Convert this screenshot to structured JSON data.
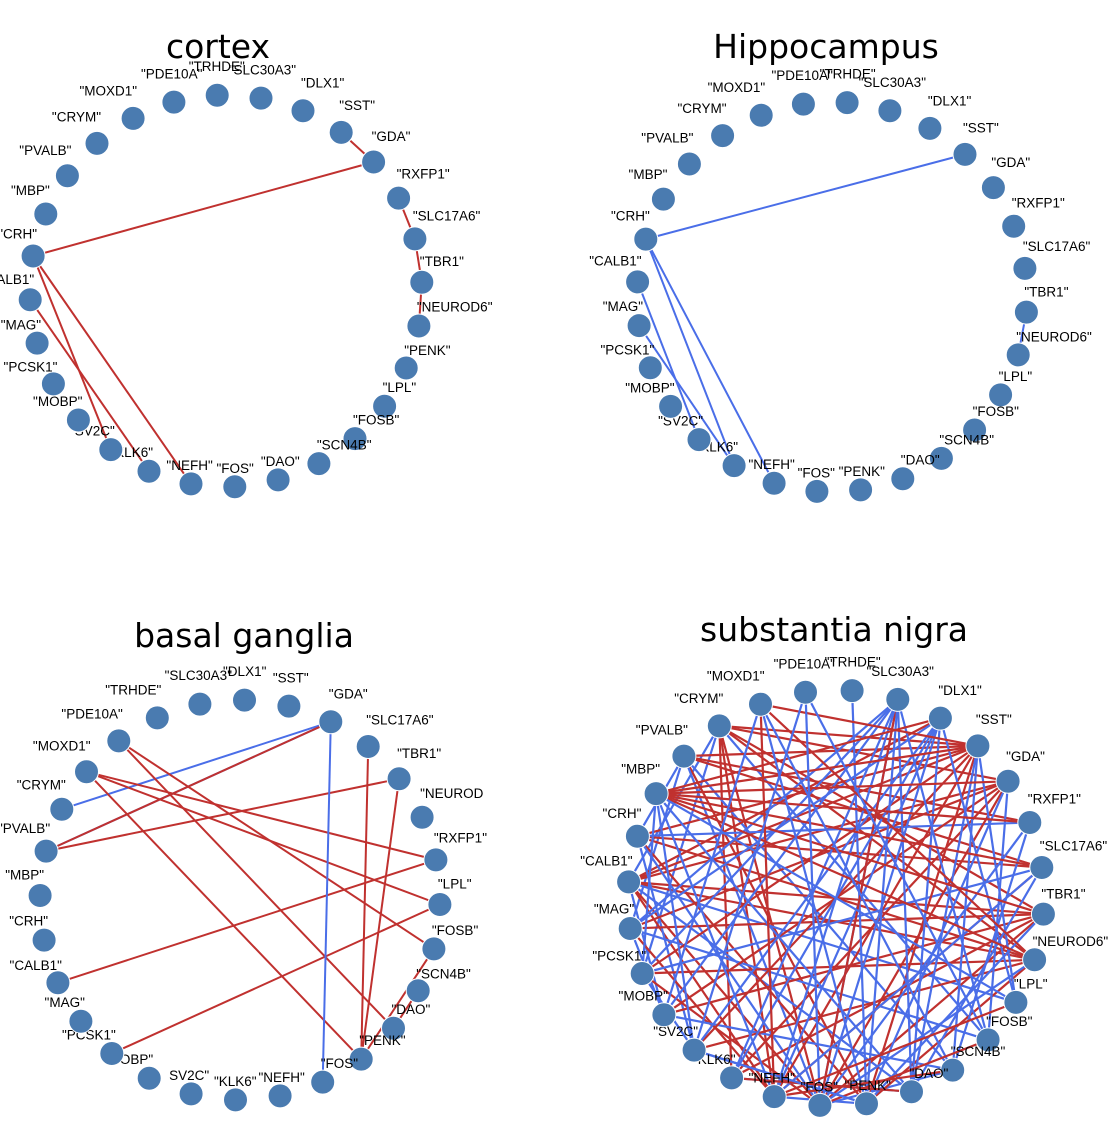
{
  "colors": {
    "positive_edge": "#c0312f",
    "negative_edge": "#4a6ee8",
    "node": "#4a7bb0"
  },
  "figure": {
    "panels": [
      {
        "title": "cortex",
        "nodes": [
          "\"SST\"",
          "\"GDA\"",
          "\"RXFP1\"",
          "\"SLC17A6\"",
          "\"TBR1\"",
          "\"NEUROD6\"",
          "\"PENK\"",
          "\"LPL\"",
          "\"FOSB\"",
          "\"SCN4B\"",
          "\"DAO\"",
          "\"FOS\"",
          "\"NEFH\"",
          "\"KLK6\"",
          "\"SV2C\"",
          "\"MOBP\"",
          "\"PCSK1\"",
          "\"MAG\"",
          "\"CALB1\"",
          "\"CRH\"",
          "\"MBP\"",
          "\"PVALB\"",
          "\"CRYM\"",
          "\"MOXD1\"",
          "\"PDE10A\"",
          "\"TRHDE\"",
          "\"SLC30A3\"",
          "\"DLX1\""
        ],
        "edges": [
          {
            "a": 0,
            "b": 1,
            "s": "pos"
          },
          {
            "a": 1,
            "b": 19,
            "s": "pos"
          },
          {
            "a": 2,
            "b": 3,
            "s": "pos"
          },
          {
            "a": 3,
            "b": 4,
            "s": "pos"
          },
          {
            "a": 4,
            "b": 5,
            "s": "pos"
          },
          {
            "a": 19,
            "b": 12,
            "s": "pos"
          },
          {
            "a": 19,
            "b": 14,
            "s": "pos"
          },
          {
            "a": 18,
            "b": 13,
            "s": "pos"
          }
        ]
      },
      {
        "title": "Hippocampus",
        "nodes": [
          "\"SST\"",
          "\"GDA\"",
          "\"RXFP1\"",
          "\"SLC17A6\"",
          "\"TBR1\"",
          "\"NEUROD6\"",
          "\"LPL\"",
          "\"FOSB\"",
          "\"SCN4B\"",
          "\"DAO\"",
          "\"PENK\"",
          "\"FOS\"",
          "\"NEFH\"",
          "\"KLK6\"",
          "\"SV2C\"",
          "\"MOBP\"",
          "\"PCSK1\"",
          "\"MAG\"",
          "\"CALB1\"",
          "\"CRH\"",
          "\"MBP\"",
          "\"PVALB\"",
          "\"CRYM\"",
          "\"MOXD1\"",
          "\"PDE10A\"",
          "\"TRHDE\"",
          "\"SLC30A3\"",
          "\"DLX1\""
        ],
        "edges": [
          {
            "a": 0,
            "b": 19,
            "s": "neg"
          },
          {
            "a": 19,
            "b": 12,
            "s": "neg"
          },
          {
            "a": 19,
            "b": 13,
            "s": "neg"
          },
          {
            "a": 18,
            "b": 14,
            "s": "neg"
          },
          {
            "a": 17,
            "b": 13,
            "s": "neg"
          },
          {
            "a": 4,
            "b": 5,
            "s": "neg"
          }
        ]
      },
      {
        "title": "basal ganglia",
        "nodes": [
          "\"GDA\"",
          "\"SLC17A6\"",
          "\"TBR1\"",
          "\"NEUROD",
          "\"RXFP1\"",
          "\"LPL\"",
          "\"FOSB\"",
          "\"SCN4B\"",
          "\"DAO\"",
          "\"PENK\"",
          "\"FOS\"",
          "\"NEFH\"",
          "\"KLK6\"",
          "SV2C\"",
          "\"MOBP\"",
          "\"PCSK1\"",
          "\"MAG\"",
          "\"CALB1\"",
          "\"CRH\"",
          "\"MBP\"",
          "\"PVALB\"",
          "\"CRYM\"",
          "\"MOXD1\"",
          "\"PDE10A\"",
          "\"TRHDE\"",
          "\"SLC30A3\"",
          "\"DLX1\"",
          "\"SST\""
        ],
        "edges": [
          {
            "a": 21,
            "b": 0,
            "s": "neg"
          },
          {
            "a": 20,
            "b": 0,
            "s": "neg"
          },
          {
            "a": 20,
            "b": 0,
            "s": "pos"
          },
          {
            "a": 20,
            "b": 2,
            "s": "pos"
          },
          {
            "a": 17,
            "b": 4,
            "s": "pos"
          },
          {
            "a": 15,
            "b": 5,
            "s": "pos"
          },
          {
            "a": 22,
            "b": 9,
            "s": "pos"
          },
          {
            "a": 22,
            "b": 4,
            "s": "pos"
          },
          {
            "a": 22,
            "b": 5,
            "s": "pos"
          },
          {
            "a": 23,
            "b": 6,
            "s": "pos"
          },
          {
            "a": 23,
            "b": 8,
            "s": "pos"
          },
          {
            "a": 9,
            "b": 2,
            "s": "pos"
          },
          {
            "a": 9,
            "b": 1,
            "s": "pos"
          },
          {
            "a": 10,
            "b": 0,
            "s": "neg"
          },
          {
            "a": 9,
            "b": 6,
            "s": "pos"
          },
          {
            "a": 8,
            "b": 7,
            "s": "pos"
          }
        ]
      },
      {
        "title": "substantia nigra",
        "nodes": [
          "\"SST\"",
          "\"GDA\"",
          "\"RXFP1\"",
          "\"SLC17A6\"",
          "\"TBR1\"",
          "\"NEUROD6\"",
          "\"LPL\"",
          "\"FOSB\"",
          "\"SCN4B\"",
          "\"DAO\"",
          "\"PENK\"",
          "\"FOS\"",
          "\"NEFH\"",
          "\"KLK6\"",
          "\"SV2C\"",
          "\"MOBP\"",
          "\"PCSK1\"",
          "\"MAG\"",
          "\"CALB1\"",
          "\"CRH\"",
          "\"MBP\"",
          "\"PVALB\"",
          "\"CRYM\"",
          "\"MOXD1\"",
          "\"PDE10A\"",
          "\"TRHDE\"",
          "\"SLC30A3\"",
          "\"DLX1\""
        ],
        "edges": [
          {
            "a": 22,
            "b": 0,
            "s": "pos"
          },
          {
            "a": 22,
            "b": 1,
            "s": "pos"
          },
          {
            "a": 22,
            "b": 4,
            "s": "pos"
          },
          {
            "a": 22,
            "b": 5,
            "s": "pos"
          },
          {
            "a": 22,
            "b": 11,
            "s": "pos"
          },
          {
            "a": 22,
            "b": 12,
            "s": "pos"
          },
          {
            "a": 22,
            "b": 13,
            "s": "pos"
          },
          {
            "a": 22,
            "b": 16,
            "s": "neg"
          },
          {
            "a": 22,
            "b": 18,
            "s": "neg"
          },
          {
            "a": 22,
            "b": 7,
            "s": "neg"
          },
          {
            "a": 21,
            "b": 0,
            "s": "pos"
          },
          {
            "a": 21,
            "b": 2,
            "s": "pos"
          },
          {
            "a": 21,
            "b": 3,
            "s": "pos"
          },
          {
            "a": 21,
            "b": 10,
            "s": "pos"
          },
          {
            "a": 21,
            "b": 11,
            "s": "neg"
          },
          {
            "a": 21,
            "b": 17,
            "s": "neg"
          },
          {
            "a": 21,
            "b": 19,
            "s": "neg"
          },
          {
            "a": 21,
            "b": 8,
            "s": "neg"
          },
          {
            "a": 18,
            "b": 0,
            "s": "pos"
          },
          {
            "a": 18,
            "b": 1,
            "s": "pos"
          },
          {
            "a": 18,
            "b": 4,
            "s": "pos"
          },
          {
            "a": 18,
            "b": 5,
            "s": "pos"
          },
          {
            "a": 18,
            "b": 12,
            "s": "pos"
          },
          {
            "a": 18,
            "b": 11,
            "s": "pos"
          },
          {
            "a": 18,
            "b": 27,
            "s": "pos"
          },
          {
            "a": 18,
            "b": 6,
            "s": "neg"
          },
          {
            "a": 18,
            "b": 9,
            "s": "neg"
          },
          {
            "a": 18,
            "b": 15,
            "s": "neg"
          },
          {
            "a": 19,
            "b": 0,
            "s": "pos"
          },
          {
            "a": 19,
            "b": 3,
            "s": "pos"
          },
          {
            "a": 19,
            "b": 5,
            "s": "pos"
          },
          {
            "a": 19,
            "b": 10,
            "s": "pos"
          },
          {
            "a": 19,
            "b": 11,
            "s": "neg"
          },
          {
            "a": 19,
            "b": 2,
            "s": "neg"
          },
          {
            "a": 19,
            "b": 14,
            "s": "neg"
          },
          {
            "a": 17,
            "b": 1,
            "s": "pos"
          },
          {
            "a": 17,
            "b": 4,
            "s": "pos"
          },
          {
            "a": 17,
            "b": 12,
            "s": "pos"
          },
          {
            "a": 17,
            "b": 27,
            "s": "neg"
          },
          {
            "a": 17,
            "b": 7,
            "s": "neg"
          },
          {
            "a": 17,
            "b": 15,
            "s": "neg"
          },
          {
            "a": 16,
            "b": 0,
            "s": "pos"
          },
          {
            "a": 16,
            "b": 5,
            "s": "pos"
          },
          {
            "a": 16,
            "b": 11,
            "s": "pos"
          },
          {
            "a": 16,
            "b": 3,
            "s": "neg"
          },
          {
            "a": 16,
            "b": 26,
            "s": "neg"
          },
          {
            "a": 16,
            "b": 14,
            "s": "neg"
          },
          {
            "a": 15,
            "b": 1,
            "s": "pos"
          },
          {
            "a": 15,
            "b": 4,
            "s": "pos"
          },
          {
            "a": 15,
            "b": 26,
            "s": "neg"
          },
          {
            "a": 15,
            "b": 8,
            "s": "neg"
          },
          {
            "a": 14,
            "b": 0,
            "s": "pos"
          },
          {
            "a": 14,
            "b": 5,
            "s": "pos"
          },
          {
            "a": 14,
            "b": 27,
            "s": "neg"
          },
          {
            "a": 14,
            "b": 10,
            "s": "neg"
          },
          {
            "a": 13,
            "b": 1,
            "s": "pos"
          },
          {
            "a": 13,
            "b": 4,
            "s": "pos"
          },
          {
            "a": 13,
            "b": 26,
            "s": "neg"
          },
          {
            "a": 13,
            "b": 9,
            "s": "neg"
          },
          {
            "a": 12,
            "b": 0,
            "s": "pos"
          },
          {
            "a": 12,
            "b": 3,
            "s": "pos"
          },
          {
            "a": 12,
            "b": 27,
            "s": "neg"
          },
          {
            "a": 12,
            "b": 10,
            "s": "neg"
          },
          {
            "a": 11,
            "b": 1,
            "s": "pos"
          },
          {
            "a": 11,
            "b": 4,
            "s": "pos"
          },
          {
            "a": 11,
            "b": 26,
            "s": "neg"
          },
          {
            "a": 11,
            "b": 8,
            "s": "neg"
          },
          {
            "a": 10,
            "b": 0,
            "s": "pos"
          },
          {
            "a": 10,
            "b": 5,
            "s": "pos"
          },
          {
            "a": 10,
            "b": 25,
            "s": "neg"
          },
          {
            "a": 26,
            "b": 11,
            "s": "pos"
          },
          {
            "a": 26,
            "b": 9,
            "s": "neg"
          },
          {
            "a": 26,
            "b": 10,
            "s": "neg"
          },
          {
            "a": 26,
            "b": 12,
            "s": "neg"
          },
          {
            "a": 26,
            "b": 7,
            "s": "neg"
          },
          {
            "a": 26,
            "b": 17,
            "s": "neg"
          },
          {
            "a": 27,
            "b": 9,
            "s": "neg"
          },
          {
            "a": 27,
            "b": 11,
            "s": "neg"
          },
          {
            "a": 27,
            "b": 13,
            "s": "neg"
          },
          {
            "a": 27,
            "b": 6,
            "s": "neg"
          },
          {
            "a": 27,
            "b": 20,
            "s": "pos"
          },
          {
            "a": 0,
            "b": 6,
            "s": "neg"
          },
          {
            "a": 0,
            "b": 8,
            "s": "neg"
          },
          {
            "a": 0,
            "b": 9,
            "s": "neg"
          },
          {
            "a": 0,
            "b": 20,
            "s": "pos"
          },
          {
            "a": 0,
            "b": 23,
            "s": "pos"
          },
          {
            "a": 1,
            "b": 7,
            "s": "neg"
          },
          {
            "a": 1,
            "b": 10,
            "s": "neg"
          },
          {
            "a": 1,
            "b": 20,
            "s": "pos"
          },
          {
            "a": 2,
            "b": 8,
            "s": "neg"
          },
          {
            "a": 2,
            "b": 11,
            "s": "neg"
          },
          {
            "a": 2,
            "b": 20,
            "s": "pos"
          },
          {
            "a": 3,
            "b": 9,
            "s": "neg"
          },
          {
            "a": 3,
            "b": 12,
            "s": "neg"
          },
          {
            "a": 3,
            "b": 20,
            "s": "pos"
          },
          {
            "a": 4,
            "b": 10,
            "s": "neg"
          },
          {
            "a": 4,
            "b": 20,
            "s": "pos"
          },
          {
            "a": 5,
            "b": 11,
            "s": "neg"
          },
          {
            "a": 5,
            "b": 20,
            "s": "pos"
          },
          {
            "a": 5,
            "b": 23,
            "s": "pos"
          },
          {
            "a": 20,
            "b": 6,
            "s": "neg"
          },
          {
            "a": 20,
            "b": 9,
            "s": "neg"
          },
          {
            "a": 20,
            "b": 12,
            "s": "neg"
          },
          {
            "a": 20,
            "b": 14,
            "s": "neg"
          },
          {
            "a": 20,
            "b": 16,
            "s": "neg"
          },
          {
            "a": 23,
            "b": 8,
            "s": "neg"
          },
          {
            "a": 23,
            "b": 10,
            "s": "neg"
          },
          {
            "a": 23,
            "b": 12,
            "s": "pos"
          },
          {
            "a": 23,
            "b": 15,
            "s": "neg"
          },
          {
            "a": 24,
            "b": 7,
            "s": "neg"
          },
          {
            "a": 24,
            "b": 11,
            "s": "neg"
          },
          {
            "a": 24,
            "b": 14,
            "s": "neg"
          },
          {
            "a": 6,
            "b": 12,
            "s": "pos"
          },
          {
            "a": 7,
            "b": 11,
            "s": "pos"
          },
          {
            "a": 8,
            "b": 12,
            "s": "pos"
          },
          {
            "a": 9,
            "b": 13,
            "s": "pos"
          },
          {
            "a": 10,
            "b": 14,
            "s": "neg"
          }
        ]
      }
    ]
  }
}
